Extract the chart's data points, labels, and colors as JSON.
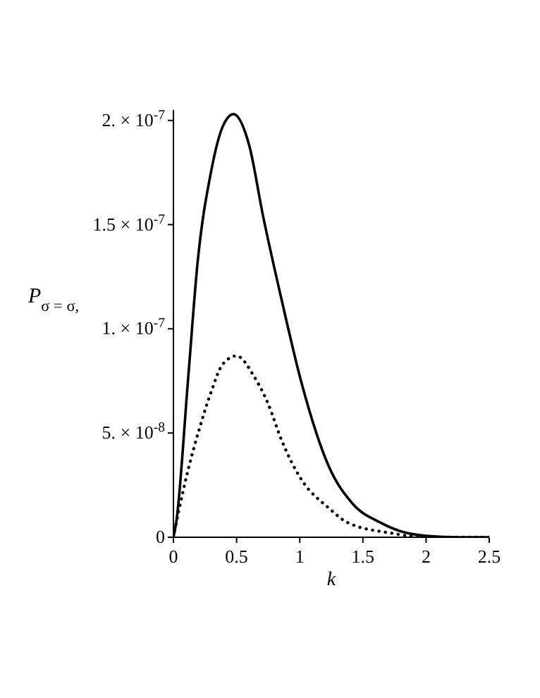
{
  "chart_data": {
    "type": "line",
    "xlabel": "k",
    "ylabel": "P$_{σ = σ,}$",
    "xlim": [
      0,
      2.5
    ],
    "xticks": [
      0,
      0.5,
      1,
      1.5,
      2,
      2.5
    ],
    "ylim": [
      0,
      2.05e-07
    ],
    "yticks": [
      0,
      {
        "value": 5e-08,
        "label": "5. × 10$^{-8}$"
      },
      {
        "value": 1e-07,
        "label": "1. × 10$^{-7}$"
      },
      {
        "value": 1.5e-07,
        "label": "1.5 × 10$^{-7}$"
      },
      {
        "value": 2e-07,
        "label": "2. × 10$^{-7}$"
      }
    ],
    "series": [
      {
        "color": "#000000",
        "line_style": "solid",
        "x": [
          0,
          0.022,
          0.115,
          0.19,
          0.3,
          0.39,
          0.476,
          0.6,
          0.71,
          0.86,
          1.01,
          1.23,
          1.42,
          1.64,
          1.85,
          2.0,
          2.27,
          2.5
        ],
        "values": [
          0,
          7e-09,
          7.5e-08,
          1.31e-07,
          1.76e-07,
          1.97e-07,
          2.03e-07,
          1.88e-07,
          1.54e-07,
          1.13e-07,
          7.5e-08,
          3.4e-08,
          1.6e-08,
          7e-09,
          2e-09,
          7e-10,
          0,
          0
        ]
      },
      {
        "color": "#000000",
        "line_style": "dotted",
        "x": [
          0,
          0.04,
          0.115,
          0.21,
          0.3,
          0.39,
          0.5,
          0.64,
          0.75,
          0.86,
          1.01,
          1.23,
          1.38,
          1.72,
          2.0,
          2.5
        ],
        "values": [
          0,
          1.2e-08,
          3.2e-08,
          5.3e-08,
          7e-08,
          8.3e-08,
          8.7e-08,
          7.7e-08,
          6.4e-08,
          4.6e-08,
          2.8e-08,
          1.4e-08,
          7e-09,
          2e-09,
          0,
          0
        ]
      }
    ]
  }
}
